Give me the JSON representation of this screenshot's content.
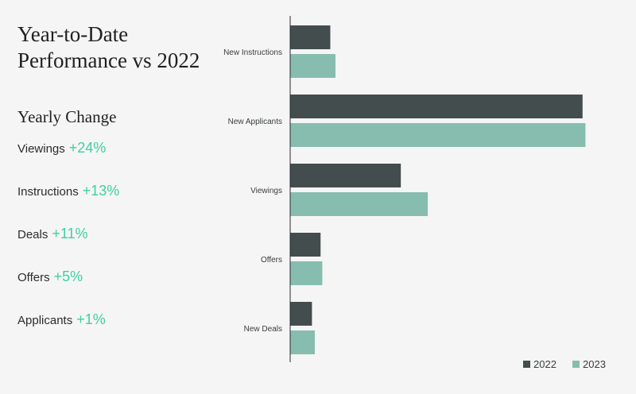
{
  "title_lines": [
    "Year-to-Date",
    "Performance vs 2022"
  ],
  "yearly_change": {
    "heading": "Yearly Change",
    "items": [
      {
        "label": "Viewings",
        "value": "+24%"
      },
      {
        "label": "Instructions",
        "value": "+13%"
      },
      {
        "label": "Deals",
        "value": "+11%"
      },
      {
        "label": "Offers",
        "value": "+5%"
      },
      {
        "label": "Applicants",
        "value": "+1%"
      }
    ]
  },
  "colors": {
    "series_2022": "#434d4e",
    "series_2023": "#86bdae",
    "accent": "#3ed0a3"
  },
  "chart_data": {
    "type": "bar",
    "orientation": "horizontal",
    "categories": [
      "New Instructions",
      "New Applicants",
      "Viewings",
      "Offers",
      "New Deals"
    ],
    "series": [
      {
        "name": "2022",
        "values": [
          7,
          51,
          19.3,
          5.3,
          3.8
        ]
      },
      {
        "name": "2023",
        "values": [
          7.9,
          51.5,
          24,
          5.6,
          4.3
        ]
      }
    ],
    "xlim": [
      0,
      52
    ],
    "grid": false,
    "legend": "bottom-right"
  }
}
